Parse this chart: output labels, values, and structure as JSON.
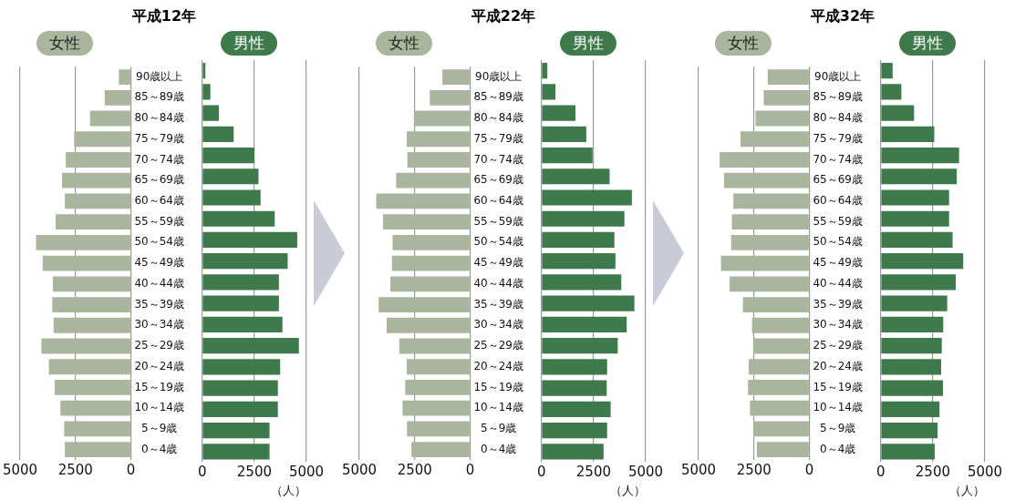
{
  "chart_data": [
    {
      "type": "bar",
      "orientation": "horizontal",
      "title": "平成12年",
      "categories": [
        "90歳以上",
        "85～89歳",
        "80～84歳",
        "75～79歳",
        "70～74歳",
        "65～69歳",
        "60～64歳",
        "55～59歳",
        "50～54歳",
        "45～49歳",
        "40～44歳",
        "35～39歳",
        "30～34歳",
        "25～29歳",
        "20～24歳",
        "15～19歳",
        "10～14歳",
        "5～9歳",
        "0～4歳"
      ],
      "series": [
        {
          "name": "女性",
          "color": "#a9b59c",
          "values": [
            540,
            1180,
            1840,
            2560,
            2940,
            3110,
            2980,
            3400,
            4280,
            3980,
            3520,
            3550,
            3490,
            4040,
            3700,
            3440,
            3180,
            3010,
            2980
          ]
        }
      ],
      "xlim": [
        5000,
        0
      ],
      "xticks": [
        5000,
        2500,
        0
      ],
      "grid": "x",
      "legend": "top"
    },
    {
      "type": "bar",
      "orientation": "horizontal",
      "categories": [
        null,
        null,
        null,
        null,
        null,
        null,
        null,
        null,
        null,
        null,
        null,
        null,
        null,
        null,
        null,
        null,
        null,
        null,
        null
      ],
      "series": [
        {
          "name": "男性",
          "color": "#3f7a4c",
          "values": [
            150,
            390,
            800,
            1510,
            2500,
            2700,
            2800,
            3480,
            4560,
            4100,
            3680,
            3680,
            3850,
            4640,
            3740,
            3630,
            3630,
            3230,
            3230
          ]
        }
      ],
      "xlim": [
        0,
        5000
      ],
      "xticks": [
        0,
        2500,
        5000
      ],
      "xlabel": "（人）",
      "grid": "x",
      "legend": "top",
      "tick_labels": "x"
    },
    {
      "type": "bar",
      "orientation": "horizontal",
      "title": "平成22年",
      "categories": [
        "90歳以上",
        "85～89歳",
        "80～84歳",
        "75～79歳",
        "70～74歳",
        "65～69歳",
        "60～64歳",
        "55～59歳",
        "50～54歳",
        "45～49歳",
        "40～44歳",
        "35～39歳",
        "30～34歳",
        "25～29歳",
        "20～24歳",
        "15～19歳",
        "10～14歳",
        "5～9歳",
        "0～4歳"
      ],
      "series": [
        {
          "name": "女性",
          "color": "#a9b59c",
          "values": [
            1250,
            1820,
            2540,
            2860,
            2830,
            3340,
            4240,
            3930,
            3500,
            3530,
            3600,
            4130,
            3770,
            3200,
            2860,
            2930,
            3050,
            2850,
            2650
          ]
        }
      ],
      "xlim": [
        5000,
        0
      ],
      "xticks": [
        5000,
        2500,
        0
      ],
      "grid": "x",
      "legend": "top"
    },
    {
      "type": "bar",
      "orientation": "horizontal",
      "categories": [
        null,
        null,
        null,
        null,
        null,
        null,
        null,
        null,
        null,
        null,
        null,
        null,
        null,
        null,
        null,
        null,
        null,
        null,
        null
      ],
      "series": [
        {
          "name": "男性",
          "color": "#3f7a4c",
          "values": [
            280,
            670,
            1630,
            2150,
            2450,
            3270,
            4340,
            3980,
            3500,
            3550,
            3830,
            4460,
            4090,
            3660,
            3150,
            3130,
            3320,
            3150,
            2980
          ]
        }
      ],
      "xlim": [
        0,
        5000
      ],
      "xticks": [
        0,
        2500,
        5000
      ],
      "xlabel": "（人）",
      "grid": "x",
      "legend": "top",
      "tick_labels": "x"
    },
    {
      "type": "bar",
      "orientation": "horizontal",
      "title": "平成32年",
      "categories": [
        "90歳以上",
        "85～89歳",
        "80～84歳",
        "75～79歳",
        "70～74歳",
        "65～69歳",
        "60～64歳",
        "55～59歳",
        "50～54歳",
        "45～49歳",
        "40～44歳",
        "35～39歳",
        "30～34歳",
        "25～29歳",
        "20～24歳",
        "15～19歳",
        "10～14歳",
        "5～9歳",
        "0～4歳"
      ],
      "series": [
        {
          "name": "女性",
          "color": "#a9b59c",
          "values": [
            1880,
            2060,
            2430,
            3110,
            4050,
            3850,
            3430,
            3500,
            3530,
            3990,
            3600,
            3000,
            2590,
            2540,
            2740,
            2770,
            2680,
            2530,
            2370
          ]
        }
      ],
      "xlim": [
        5000,
        0
      ],
      "xticks": [
        5000,
        2500,
        0
      ],
      "grid": "x",
      "legend": "top"
    },
    {
      "type": "bar",
      "orientation": "horizontal",
      "categories": [
        null,
        null,
        null,
        null,
        null,
        null,
        null,
        null,
        null,
        null,
        null,
        null,
        null,
        null,
        null,
        null,
        null,
        null,
        null
      ],
      "series": [
        {
          "name": "男性",
          "color": "#3f7a4c",
          "values": [
            570,
            990,
            1600,
            2570,
            3760,
            3650,
            3280,
            3280,
            3450,
            3960,
            3600,
            3190,
            3000,
            2930,
            2900,
            2990,
            2820,
            2730,
            2590
          ]
        }
      ],
      "xlim": [
        0,
        5000
      ],
      "xticks": [
        0,
        2500,
        5000
      ],
      "xlabel": "（人）",
      "grid": "x",
      "legend": "top",
      "tick_labels": "x"
    }
  ]
}
